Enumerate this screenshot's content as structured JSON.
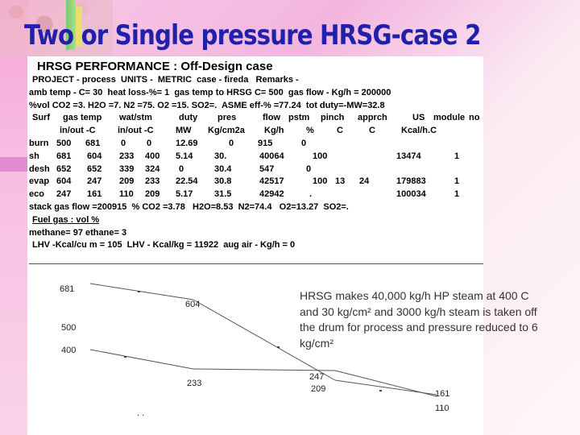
{
  "title": "Two or Single pressure HRSG-case 2",
  "report": {
    "heading": "HRSG PERFORMANCE : Off-Design case",
    "lines": [
      "PROJECT - process  UNITS -  METRIC  case - fireda   Remarks -",
      "amb temp - C= 30  heat loss-%= 1  gas temp to HRSG C= 500  gas flow - Kg/h = 200000",
      "%vol CO2 =3. H2O =7. N2 =75. O2 =15. SO2=.  ASME eff-% =77.24  tot duty=-MW=32.8"
    ],
    "header_row1": [
      "Surf",
      "gas temp",
      "wat/stm",
      "duty",
      "pres",
      "flow",
      "pstm",
      "pinch",
      "apprch",
      "US",
      "module",
      "no"
    ],
    "header_row2": [
      "in/out -C",
      "in/out -C",
      "MW",
      "Kg/cm2a",
      "Kg/h",
      "%",
      "C",
      "C",
      "Kcal/h.C"
    ],
    "rows": [
      [
        "burn",
        "500",
        "681",
        "0",
        "0",
        "12.69",
        "0",
        "915",
        "0",
        "",
        "",
        "",
        ""
      ],
      [
        "sh",
        "681",
        "604",
        "233",
        "400",
        "5.14",
        "30.",
        "40064",
        "100",
        "",
        "",
        "13474",
        "1"
      ],
      [
        "desh",
        "652",
        "652",
        "339",
        "324",
        "0",
        "30.4",
        "547",
        "0",
        "",
        "",
        "",
        ""
      ],
      [
        "evap",
        "604",
        "247",
        "209",
        "233",
        "22.54",
        "30.8",
        "42517",
        "",
        "100",
        "13",
        "24",
        "179883",
        "1"
      ],
      [
        "eco",
        "247",
        "161",
        "110",
        "209",
        "5.17",
        "31.5",
        "42942",
        ".",
        "",
        "",
        "100034",
        "1"
      ]
    ],
    "stack_line": "stack gas flow =200915  % CO2 =3.78   H2O=8.53  N2=74.4   O2=13.27  SO2=.",
    "fuel_line": "Fuel gas : vol %",
    "methane_line": "methane= 97 ethane= 3",
    "lhv_line": "LHV -Kcal/cu m = 105  LHV - Kcal/kg = 11922  aug air - Kg/h = 0"
  },
  "chart": {
    "labels": {
      "gas_in": "681",
      "gas_sh_out": "604",
      "stm_500": "500",
      "stm_400": "400",
      "stm_233": "233",
      "gas_247": "247",
      "wat_209": "209",
      "gas_161": "161",
      "wat_110": "110",
      "dots": ". ."
    }
  },
  "chart_data": {
    "type": "line",
    "title": "",
    "xlabel": "",
    "ylabel": "",
    "series": [
      {
        "values": [
          681,
          604,
          247,
          161
        ]
      },
      {
        "values": [
          400,
          233,
          209,
          110
        ]
      }
    ]
  },
  "note": "HRSG makes 40,000 kg/h HP steam at 400 C and 30 kg/cm² and 3000 kg/h steam is taken off the drum for process and pressure reduced to 6 kg/cm²",
  "colors": {
    "title": "#2020a8",
    "background": "#f7c9e6",
    "curve": "#555555"
  }
}
